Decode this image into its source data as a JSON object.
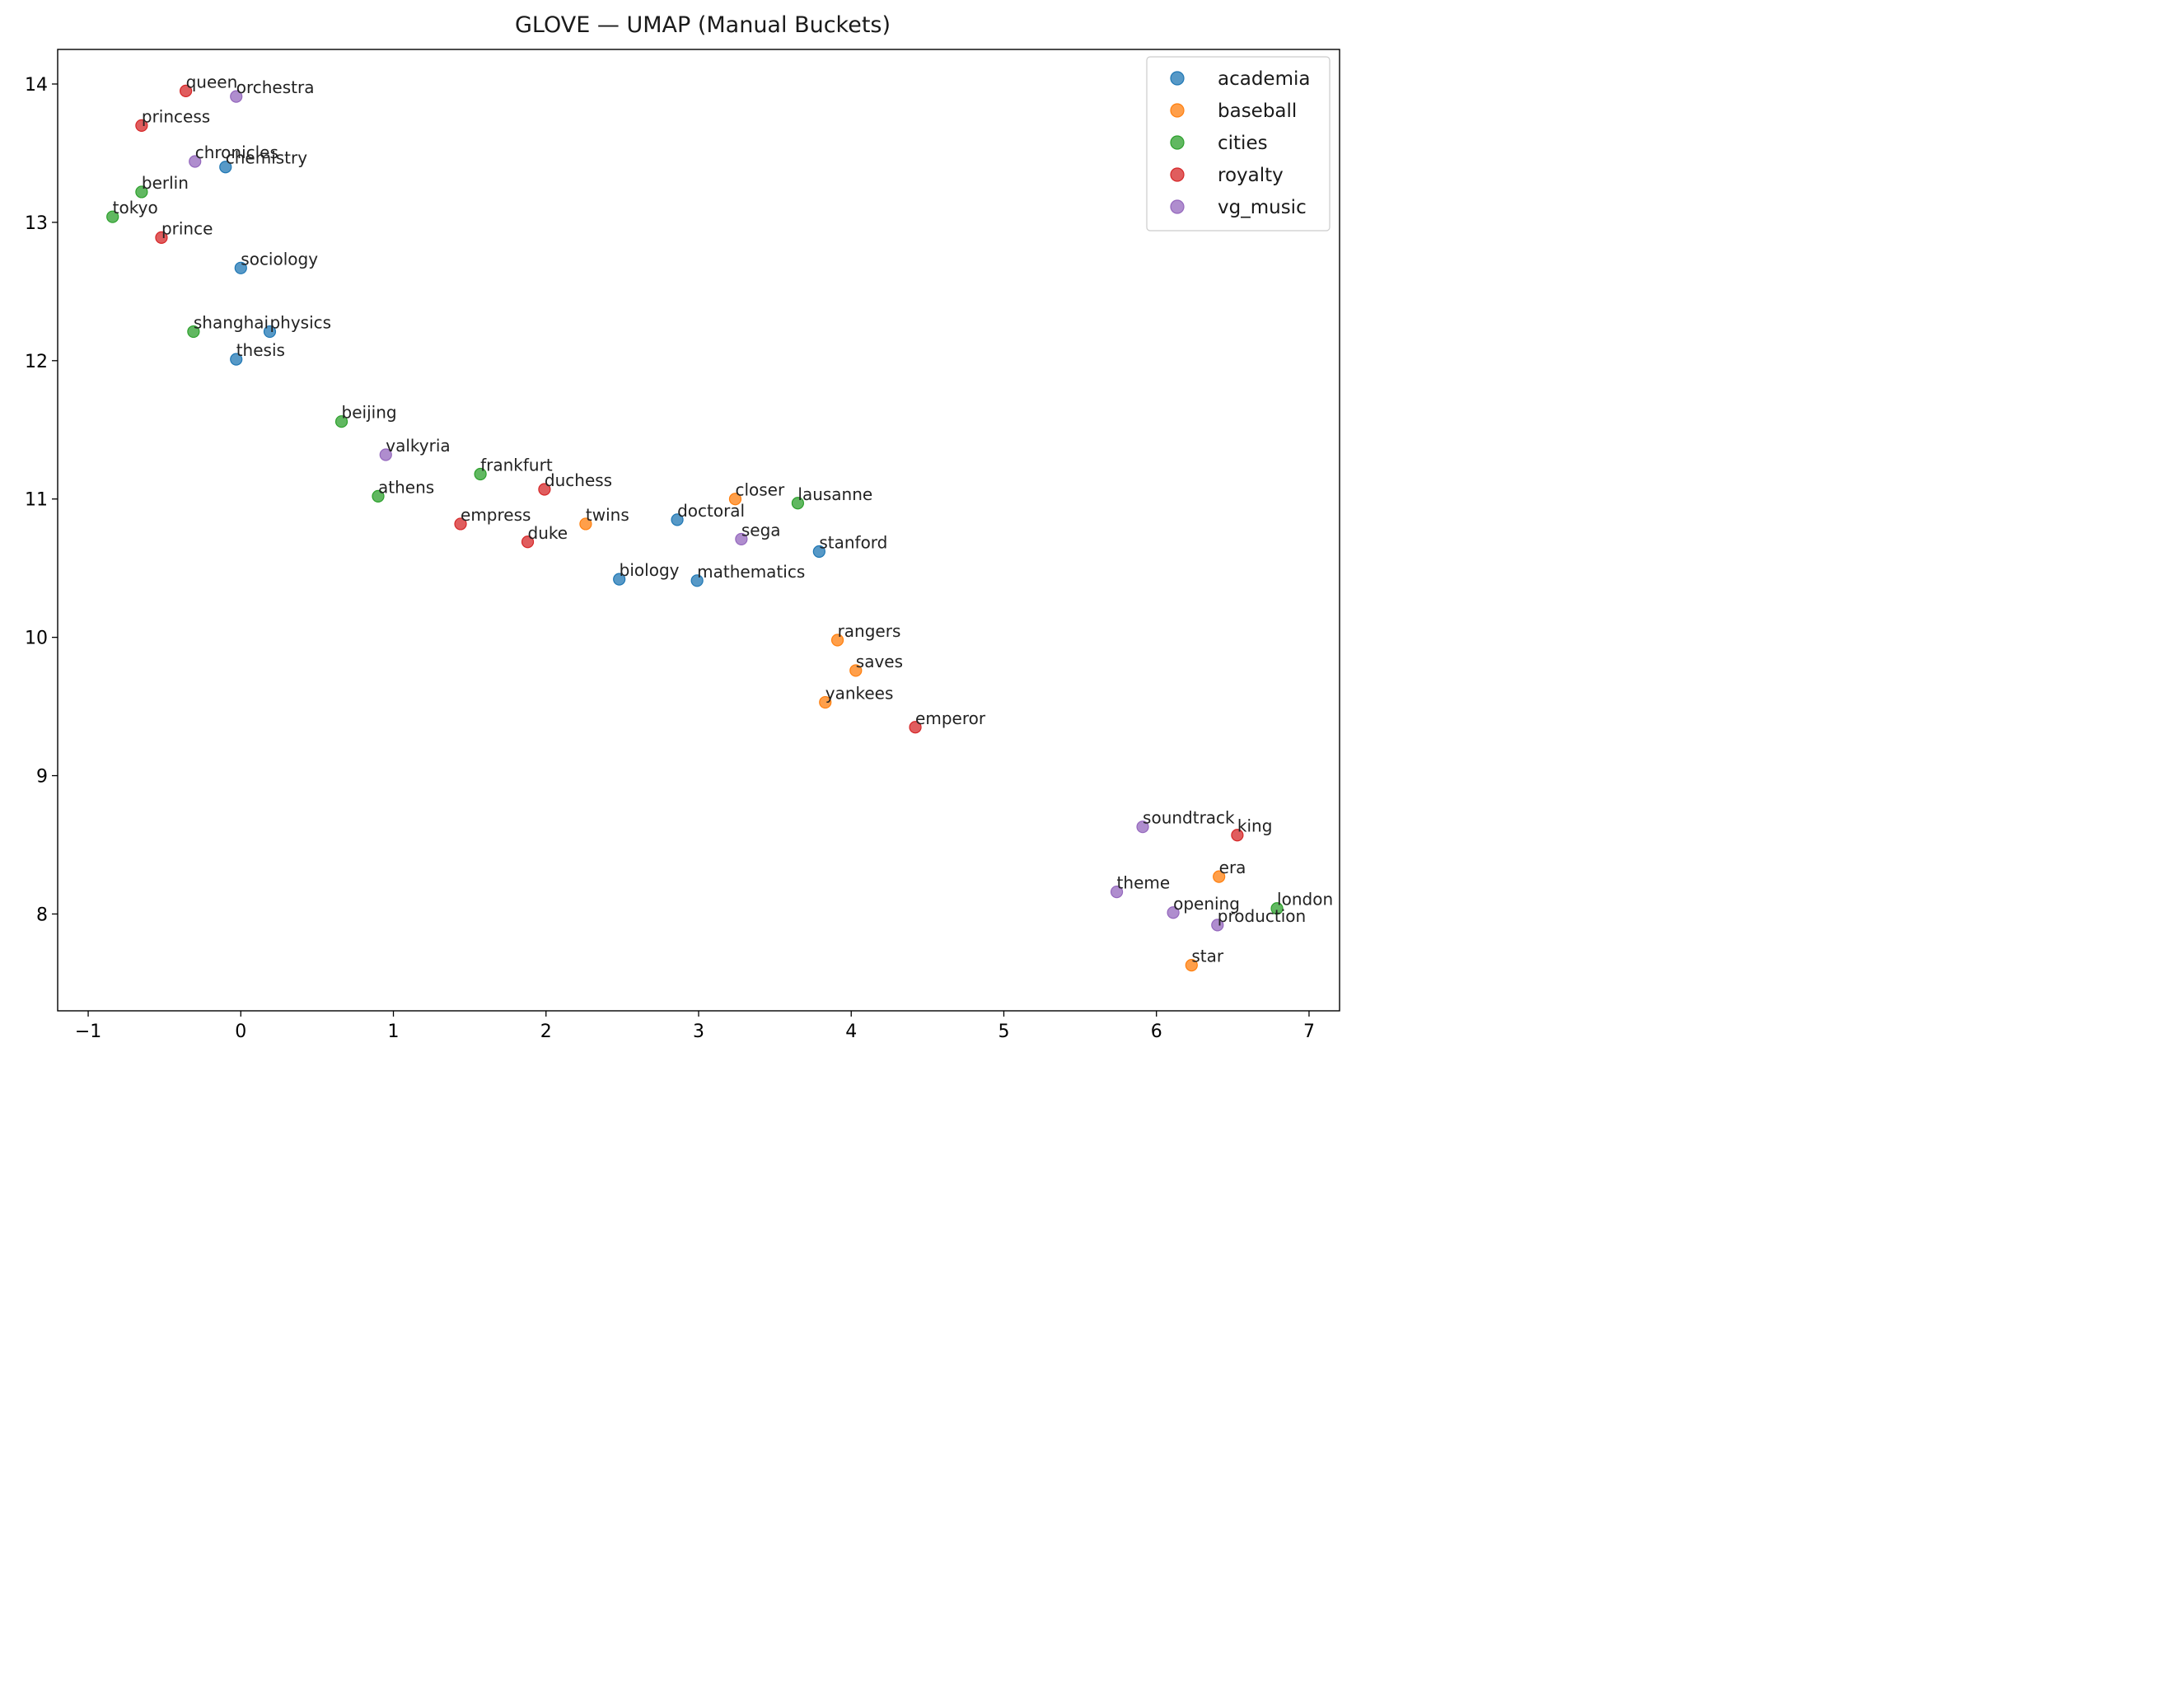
{
  "chart_data": {
    "type": "scatter",
    "title": "GLOVE — UMAP (Manual Buckets)",
    "xlabel": "",
    "ylabel": "",
    "xlim": [
      -1.2,
      7.2
    ],
    "ylim": [
      7.3,
      14.25
    ],
    "x_ticks": [
      -1,
      0,
      1,
      2,
      3,
      4,
      5,
      6,
      7
    ],
    "x_tick_labels": [
      "−1",
      "0",
      "1",
      "2",
      "3",
      "4",
      "5",
      "6",
      "7"
    ],
    "y_ticks": [
      8,
      9,
      10,
      11,
      12,
      13,
      14
    ],
    "y_tick_labels": [
      "8",
      "9",
      "10",
      "11",
      "12",
      "13",
      "14"
    ],
    "grid": false,
    "legend_position": "top-right",
    "series": [
      {
        "name": "academia",
        "color": "#1f77b4",
        "points": [
          {
            "label": "chemistry",
            "x": -0.1,
            "y": 13.4
          },
          {
            "label": "sociology",
            "x": 0.0,
            "y": 12.67
          },
          {
            "label": "physics",
            "x": 0.19,
            "y": 12.21
          },
          {
            "label": "thesis",
            "x": -0.03,
            "y": 12.01
          },
          {
            "label": "doctoral",
            "x": 2.86,
            "y": 10.85
          },
          {
            "label": "stanford",
            "x": 3.79,
            "y": 10.62
          },
          {
            "label": "biology",
            "x": 2.48,
            "y": 10.42
          },
          {
            "label": "mathematics",
            "x": 2.99,
            "y": 10.41
          }
        ]
      },
      {
        "name": "baseball",
        "color": "#ff7f0e",
        "points": [
          {
            "label": "closer",
            "x": 3.24,
            "y": 11.0
          },
          {
            "label": "twins",
            "x": 2.26,
            "y": 10.82
          },
          {
            "label": "rangers",
            "x": 3.91,
            "y": 9.98
          },
          {
            "label": "saves",
            "x": 4.03,
            "y": 9.76
          },
          {
            "label": "yankees",
            "x": 3.83,
            "y": 9.53
          },
          {
            "label": "era",
            "x": 6.41,
            "y": 8.27
          },
          {
            "label": "star",
            "x": 6.23,
            "y": 7.63
          }
        ]
      },
      {
        "name": "cities",
        "color": "#2ca02c",
        "points": [
          {
            "label": "berlin",
            "x": -0.65,
            "y": 13.22
          },
          {
            "label": "tokyo",
            "x": -0.84,
            "y": 13.04
          },
          {
            "label": "shanghai",
            "x": -0.31,
            "y": 12.21
          },
          {
            "label": "beijing",
            "x": 0.66,
            "y": 11.56
          },
          {
            "label": "frankfurt",
            "x": 1.57,
            "y": 11.18
          },
          {
            "label": "athens",
            "x": 0.9,
            "y": 11.02
          },
          {
            "label": "lausanne",
            "x": 3.65,
            "y": 10.97
          },
          {
            "label": "london",
            "x": 6.79,
            "y": 8.04
          }
        ]
      },
      {
        "name": "royalty",
        "color": "#d62728",
        "points": [
          {
            "label": "queen",
            "x": -0.36,
            "y": 13.95
          },
          {
            "label": "princess",
            "x": -0.65,
            "y": 13.7
          },
          {
            "label": "prince",
            "x": -0.52,
            "y": 12.89
          },
          {
            "label": "duchess",
            "x": 1.99,
            "y": 11.07
          },
          {
            "label": "empress",
            "x": 1.44,
            "y": 10.82
          },
          {
            "label": "duke",
            "x": 1.88,
            "y": 10.69
          },
          {
            "label": "emperor",
            "x": 4.42,
            "y": 9.35
          },
          {
            "label": "king",
            "x": 6.53,
            "y": 8.57
          }
        ]
      },
      {
        "name": "vg_music",
        "color": "#9467bd",
        "points": [
          {
            "label": "orchestra",
            "x": -0.03,
            "y": 13.91
          },
          {
            "label": "chronicles",
            "x": -0.3,
            "y": 13.44
          },
          {
            "label": "valkyria",
            "x": 0.95,
            "y": 11.32
          },
          {
            "label": "sega",
            "x": 3.28,
            "y": 10.71
          },
          {
            "label": "soundtrack",
            "x": 5.91,
            "y": 8.63
          },
          {
            "label": "theme",
            "x": 5.74,
            "y": 8.16
          },
          {
            "label": "opening",
            "x": 6.11,
            "y": 8.01
          },
          {
            "label": "production",
            "x": 6.4,
            "y": 7.92
          }
        ]
      }
    ]
  }
}
